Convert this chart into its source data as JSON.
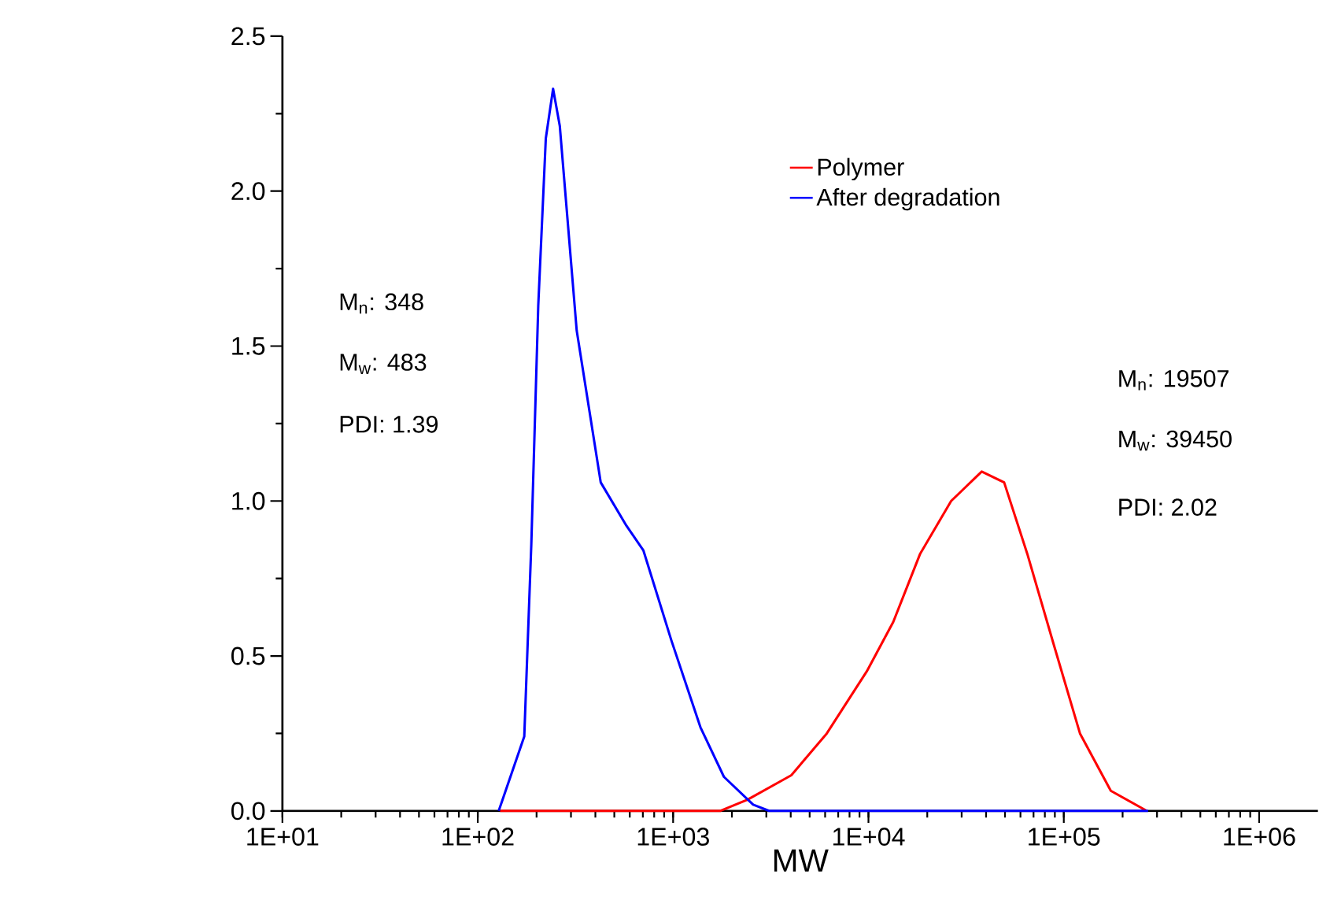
{
  "chart_data": {
    "type": "line",
    "xlabel": "MW",
    "log": "x",
    "xlim": [
      10,
      2000000
    ],
    "ylim": [
      0,
      2.5
    ],
    "xticks": [
      {
        "value": 10,
        "label": "1E+01"
      },
      {
        "value": 100,
        "label": "1E+02"
      },
      {
        "value": 1000,
        "label": "1E+03"
      },
      {
        "value": 10000,
        "label": "1E+04"
      },
      {
        "value": 100000,
        "label": "1E+05"
      },
      {
        "value": 1000000,
        "label": "1E+06"
      }
    ],
    "yticks": [
      {
        "value": 0,
        "label": "0.0"
      },
      0.5,
      {
        "value": 1,
        "label": "1.0"
      },
      1.5,
      {
        "value": 2,
        "label": "2.0"
      },
      2.5
    ],
    "legend": "top",
    "grid": false,
    "marker": "none",
    "line_style": "solid",
    "series": [
      {
        "name": "Polymer",
        "color": "#ff0000",
        "x": [
          130,
          1740,
          2400,
          4030,
          6120,
          9800,
          13400,
          18400,
          26500,
          38000,
          49500,
          65000,
          88500,
          121000,
          174000,
          266000
        ],
        "values": [
          0,
          0,
          0.036,
          0.115,
          0.25,
          0.45,
          0.61,
          0.83,
          1.0,
          1.095,
          1.06,
          0.83,
          0.54,
          0.25,
          0.065,
          0
        ]
      },
      {
        "name": "After degradation",
        "color": "#0000ff",
        "x": [
          128,
          173,
          188,
          204,
          223,
          243,
          263,
          321,
          426,
          577,
          705,
          980,
          1380,
          1820,
          2570,
          3100,
          270000
        ],
        "values": [
          0,
          0.24,
          0.86,
          1.63,
          2.17,
          2.33,
          2.21,
          1.55,
          1.06,
          0.92,
          0.84,
          0.55,
          0.27,
          0.11,
          0.02,
          0,
          0
        ]
      }
    ],
    "annotations": [
      "M$_{n}$: 348",
      "M$_{w}$: 483",
      "PDI: 1.39",
      "M$_{n}$: 19507",
      "M$_{w}$: 39450",
      "PDI: 2.02"
    ]
  }
}
